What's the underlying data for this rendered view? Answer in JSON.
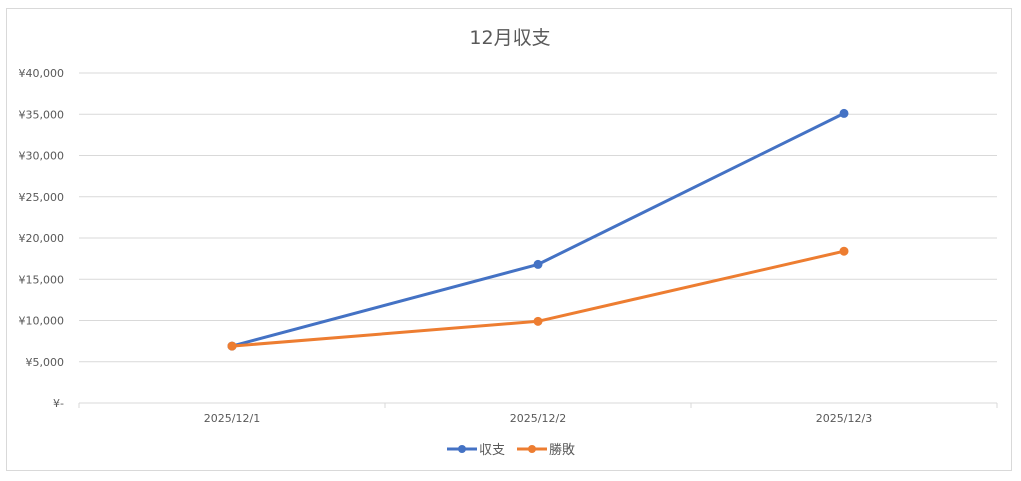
{
  "chart_data": {
    "type": "line",
    "title": "12月収支",
    "xlabel": "",
    "ylabel": "",
    "categories": [
      "2025/12/1",
      "2025/12/2",
      "2025/12/3"
    ],
    "ylim": [
      0,
      40000
    ],
    "y_ticks": [
      {
        "value": 0,
        "label": "¥-"
      },
      {
        "value": 5000,
        "label": "¥5,000"
      },
      {
        "value": 10000,
        "label": "¥10,000"
      },
      {
        "value": 15000,
        "label": "¥15,000"
      },
      {
        "value": 20000,
        "label": "¥20,000"
      },
      {
        "value": 25000,
        "label": "¥25,000"
      },
      {
        "value": 30000,
        "label": "¥30,000"
      },
      {
        "value": 35000,
        "label": "¥35,000"
      },
      {
        "value": 40000,
        "label": "¥40,000"
      }
    ],
    "grid": true,
    "legend": "bottom",
    "series": [
      {
        "name": "収支",
        "color": "#4472c4",
        "values": [
          6900,
          16800,
          35100
        ]
      },
      {
        "name": "勝敗",
        "color": "#ed7d31",
        "values": [
          6900,
          9900,
          18400
        ]
      }
    ]
  }
}
